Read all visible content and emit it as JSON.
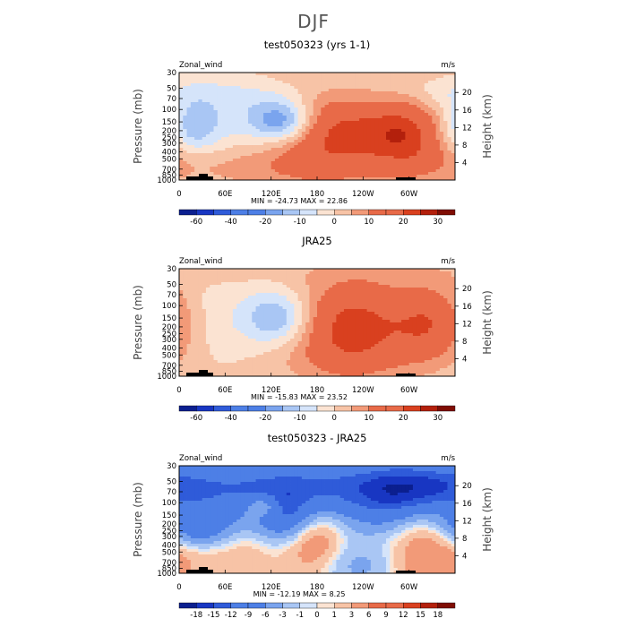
{
  "page": {
    "title": "DJF"
  },
  "colors": {
    "scale": [
      "#0b1f8f",
      "#1836c2",
      "#2f5bd9",
      "#4d7fe6",
      "#7aa4ee",
      "#a9c6f4",
      "#d5e4fa",
      "#fbe3d2",
      "#f7c3a6",
      "#f29a78",
      "#e86a48",
      "#d9401f",
      "#b3200c",
      "#7f0d04"
    ]
  },
  "chart_data": [
    {
      "type": "heatmap",
      "title": "test050323 (yrs 1-1)",
      "field_label": "Zonal_wind",
      "units": "m/s",
      "ylabel": "Pressure (mb)",
      "y2label": "Height (km)",
      "x_ticks": [
        "0",
        "60E",
        "120E",
        "180",
        "120W",
        "60W"
      ],
      "x_tick_values": [
        0,
        60,
        120,
        180,
        240,
        300
      ],
      "xlim": [
        0,
        360
      ],
      "p_ticks": [
        "30",
        "50",
        "70",
        "100",
        "150",
        "200",
        "250",
        "300",
        "400",
        "500",
        "700",
        "850",
        "1000"
      ],
      "p_tick_values": [
        30,
        50,
        70,
        100,
        150,
        200,
        250,
        300,
        400,
        500,
        700,
        850,
        1000
      ],
      "z_ticks": [
        "4",
        "8",
        "12",
        "16",
        "20"
      ],
      "z_tick_values": [
        4,
        8,
        12,
        16,
        20
      ],
      "stats": "MIN = -24.73   MAX =  22.86",
      "min": -24.73,
      "max": 22.86,
      "levels": [
        -70,
        -60,
        -50,
        -40,
        -30,
        -20,
        -15,
        -10,
        -5,
        0,
        5,
        10,
        15,
        20,
        25,
        30,
        35
      ],
      "colorbar_labels": [
        "-60",
        "-40",
        "-20",
        "-10",
        "0",
        "10",
        "20",
        "30"
      ],
      "features": [
        {
          "lon": 195,
          "p": 200,
          "amp": 22.9,
          "wl": 60,
          "wp": 1.1
        },
        {
          "lon": 300,
          "p": 200,
          "amp": 20,
          "wl": 40,
          "wp": 1.0
        },
        {
          "lon": 135,
          "p": 150,
          "amp": -24.7,
          "wl": 30,
          "wp": 0.5
        },
        {
          "lon": 15,
          "p": 200,
          "amp": -12,
          "wl": 25,
          "wp": 0.6
        },
        {
          "lon": 180,
          "p": 60,
          "amp": -6,
          "wl": 120,
          "wp": 0.6
        },
        {
          "lon": 330,
          "p": 60,
          "amp": -5,
          "wl": 50,
          "wp": 0.5
        },
        {
          "lon": 60,
          "p": 150,
          "amp": -6,
          "wl": 60,
          "wp": 0.9
        },
        {
          "lon": 100,
          "p": 700,
          "amp": 5,
          "wl": 80,
          "wp": 0.5
        },
        {
          "lon": 0,
          "p": 500,
          "amp": 4,
          "wl": 60,
          "wp": 0.5
        },
        {
          "lon": 40,
          "p": 30,
          "amp": 2.5,
          "wl": 200,
          "wp": 0.3
        }
      ]
    },
    {
      "type": "heatmap",
      "title": "JRA25",
      "field_label": "Zonal_wind",
      "units": "m/s",
      "ylabel": "Pressure (mb)",
      "y2label": "Height (km)",
      "x_ticks": [
        "0",
        "60E",
        "120E",
        "180",
        "120W",
        "60W"
      ],
      "x_tick_values": [
        0,
        60,
        120,
        180,
        240,
        300
      ],
      "xlim": [
        0,
        360
      ],
      "p_ticks": [
        "30",
        "50",
        "70",
        "100",
        "150",
        "200",
        "250",
        "300",
        "400",
        "500",
        "700",
        "850",
        "1000"
      ],
      "p_tick_values": [
        30,
        50,
        70,
        100,
        150,
        200,
        250,
        300,
        400,
        500,
        700,
        850,
        1000
      ],
      "z_ticks": [
        "4",
        "8",
        "12",
        "16",
        "20"
      ],
      "z_tick_values": [
        4,
        8,
        12,
        16,
        20
      ],
      "stats": "MIN = -15.83   MAX =  23.52",
      "min": -15.83,
      "max": 23.52,
      "levels": [
        -70,
        -60,
        -50,
        -40,
        -30,
        -20,
        -15,
        -10,
        -5,
        0,
        5,
        10,
        15,
        20,
        25,
        30,
        35
      ],
      "colorbar_labels": [
        "-60",
        "-40",
        "-20",
        "-10",
        "0",
        "10",
        "20",
        "30"
      ],
      "features": [
        {
          "lon": 225,
          "p": 200,
          "amp": 23.5,
          "wl": 55,
          "wp": 1.1
        },
        {
          "lon": 330,
          "p": 180,
          "amp": 18,
          "wl": 35,
          "wp": 0.9
        },
        {
          "lon": 130,
          "p": 150,
          "amp": -15.8,
          "wl": 30,
          "wp": 0.6
        },
        {
          "lon": 60,
          "p": 200,
          "amp": -4,
          "wl": 80,
          "wp": 1.2
        },
        {
          "lon": 40,
          "p": 35,
          "amp": 3,
          "wl": 150,
          "wp": 0.3
        },
        {
          "lon": 160,
          "p": 600,
          "amp": 3,
          "wl": 120,
          "wp": 0.6
        }
      ]
    },
    {
      "type": "heatmap",
      "title": "test050323 - JRA25",
      "field_label": "Zonal_wind",
      "units": "m/s",
      "ylabel": "Pressure (mb)",
      "y2label": "Height (km)",
      "x_ticks": [
        "0",
        "60E",
        "120E",
        "180",
        "120W",
        "60W"
      ],
      "x_tick_values": [
        0,
        60,
        120,
        180,
        240,
        300
      ],
      "xlim": [
        0,
        360
      ],
      "p_ticks": [
        "30",
        "50",
        "70",
        "100",
        "150",
        "200",
        "250",
        "300",
        "400",
        "500",
        "700",
        "850",
        "1000"
      ],
      "p_tick_values": [
        30,
        50,
        70,
        100,
        150,
        200,
        250,
        300,
        400,
        500,
        700,
        850,
        1000
      ],
      "z_ticks": [
        "4",
        "8",
        "12",
        "16",
        "20"
      ],
      "z_tick_values": [
        4,
        8,
        12,
        16,
        20
      ],
      "stats": "MIN = -12.19   MAX =   8.25",
      "min": -12.19,
      "max": 8.25,
      "levels": [
        -21,
        -18,
        -15,
        -12,
        -9,
        -6,
        -3,
        -1,
        0,
        1,
        3,
        6,
        9,
        12,
        15,
        18,
        21
      ],
      "colorbar_labels": [
        "-18",
        "-15",
        "-12",
        "-9",
        "-6",
        "-3",
        "-1",
        "0",
        "1",
        "3",
        "6",
        "9",
        "12",
        "15",
        "18"
      ],
      "features": [
        {
          "lon": 195,
          "p": 60,
          "amp": -10,
          "wl": 80,
          "wp": 0.7
        },
        {
          "lon": 275,
          "p": 100,
          "amp": -8,
          "wl": 40,
          "wp": 0.9
        },
        {
          "lon": 330,
          "p": 60,
          "amp": -9,
          "wl": 50,
          "wp": 0.6
        },
        {
          "lon": 60,
          "p": 60,
          "amp": -8,
          "wl": 80,
          "wp": 0.6
        },
        {
          "lon": 25,
          "p": 220,
          "amp": -12.19,
          "wl": 35,
          "wp": 0.5
        },
        {
          "lon": 140,
          "p": 170,
          "amp": -10,
          "wl": 30,
          "wp": 0.6
        },
        {
          "lon": 110,
          "p": 110,
          "amp": 8.25,
          "wl": 15,
          "wp": 0.25
        },
        {
          "lon": 175,
          "p": 300,
          "amp": 7,
          "wl": 25,
          "wp": 0.8
        },
        {
          "lon": 320,
          "p": 400,
          "amp": 7,
          "wl": 40,
          "wp": 1.2
        },
        {
          "lon": 70,
          "p": 450,
          "amp": 3,
          "wl": 50,
          "wp": 0.8
        },
        {
          "lon": 240,
          "p": 800,
          "amp": -4,
          "wl": 40,
          "wp": 0.5
        }
      ]
    }
  ]
}
